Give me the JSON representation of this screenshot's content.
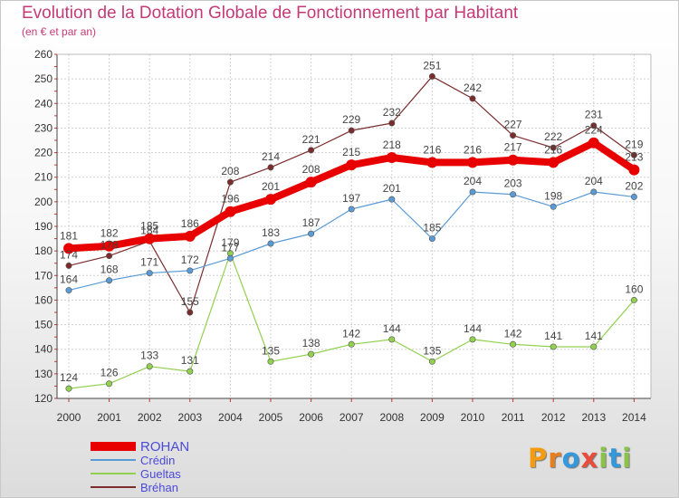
{
  "chart_data": {
    "type": "line",
    "title": "Evolution de la Dotation Globale de Fonctionnement par Habitant",
    "subtitle": "(en € et par an)",
    "xlabel": "",
    "ylabel": "",
    "x": [
      "2000",
      "2001",
      "2002",
      "2003",
      "2004",
      "2005",
      "2006",
      "2007",
      "2008",
      "2009",
      "2010",
      "2011",
      "2012",
      "2013",
      "2014"
    ],
    "ylim": [
      120,
      260
    ],
    "yticks": [
      "120",
      "130",
      "140",
      "150",
      "160",
      "170",
      "180",
      "190",
      "200",
      "210",
      "220",
      "230",
      "240",
      "250",
      "260"
    ],
    "grid": true,
    "legend_position": "bottom-left",
    "series": [
      {
        "name": "ROHAN",
        "color": "#e80000",
        "values": [
          181,
          182,
          185,
          186,
          196,
          201,
          208,
          215,
          218,
          216,
          216,
          217,
          216,
          224,
          213
        ]
      },
      {
        "name": "Crédin",
        "color": "#5b9bd5",
        "values": [
          164,
          168,
          171,
          172,
          177,
          183,
          187,
          197,
          201,
          185,
          204,
          203,
          198,
          204,
          202
        ]
      },
      {
        "name": "Gueltas",
        "color": "#92d050",
        "values": [
          124,
          126,
          133,
          131,
          179,
          135,
          138,
          142,
          144,
          135,
          144,
          142,
          141,
          141,
          160
        ]
      },
      {
        "name": "Bréhan",
        "color": "#7b2c2c",
        "values": [
          174,
          178,
          184,
          155,
          208,
          214,
          221,
          229,
          232,
          251,
          242,
          227,
          222,
          231,
          219
        ]
      }
    ]
  },
  "logo": {
    "letters": [
      "P",
      "r",
      "o",
      "x",
      "i",
      "t",
      "i"
    ],
    "colors": [
      "#f39c12",
      "#e67e22",
      "#3498db",
      "#e74c3c",
      "#8bc34a",
      "#3498db",
      "#8bc34a"
    ]
  }
}
